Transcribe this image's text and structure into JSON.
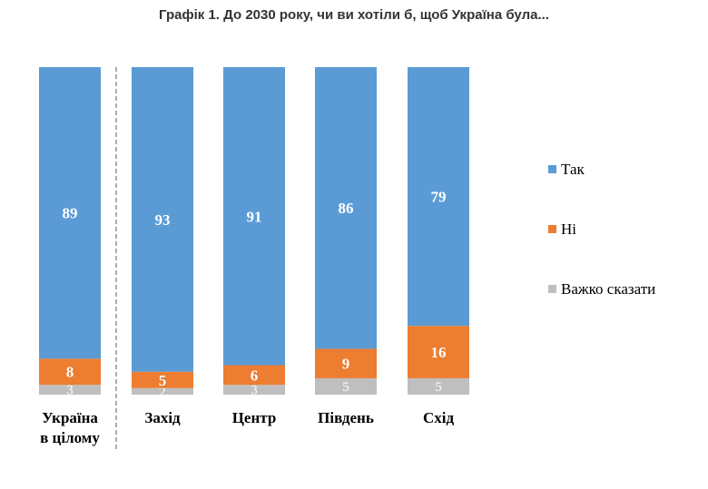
{
  "chart_data": {
    "type": "bar",
    "stacked": true,
    "title": "Графік 1. До 2030 року, чи ви хотіли б, щоб Україна була...",
    "categories": [
      [
        "Україна",
        "в цілому"
      ],
      [
        "Захід"
      ],
      [
        "Центр"
      ],
      [
        "Південь"
      ],
      [
        "Схід"
      ]
    ],
    "series": [
      {
        "name": "Так",
        "color": "#5b9bd5",
        "values": [
          89,
          93,
          91,
          86,
          79
        ]
      },
      {
        "name": "Ні",
        "color": "#ed7d31",
        "values": [
          8,
          5,
          6,
          9,
          16
        ]
      },
      {
        "name": "Важко сказати",
        "color": "#bfbfbf",
        "values": [
          3,
          2,
          3,
          5,
          5
        ]
      }
    ],
    "ylim": [
      0,
      100
    ],
    "grid": false,
    "legend_position": "right",
    "separator_after_first_category": true
  }
}
